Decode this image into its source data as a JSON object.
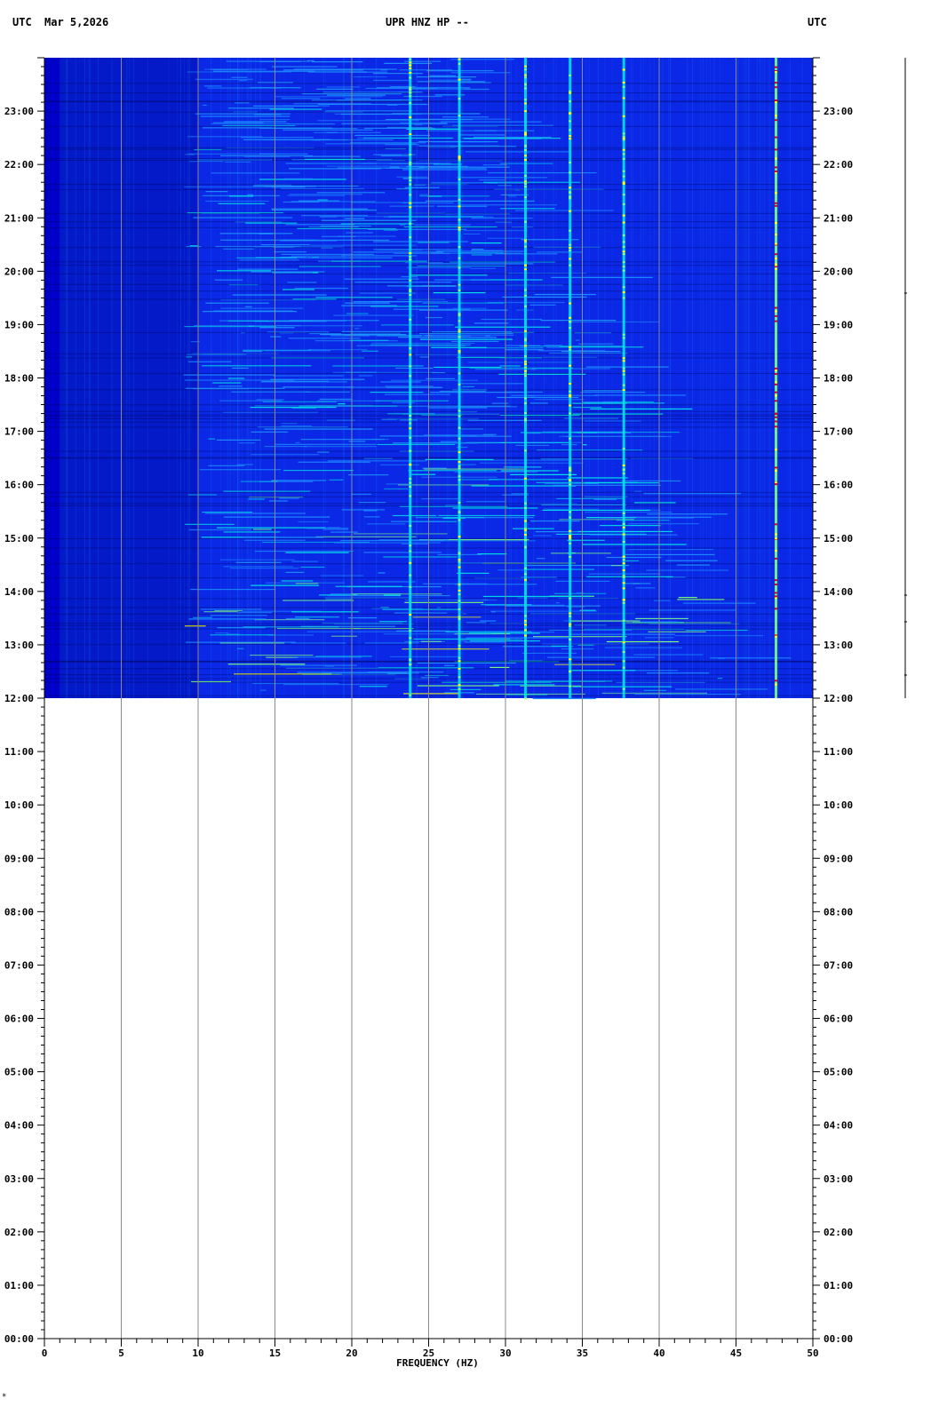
{
  "header": {
    "left_label": "UTC",
    "date": "Mar 5,2026",
    "title": "UPR HNZ HP --",
    "right_label": "UTC"
  },
  "footer": {
    "mark": "*"
  },
  "chart_data": {
    "type": "heatmap",
    "title": "UPR HNZ HP --",
    "xlabel": "FREQUENCY (HZ)",
    "ylabel": "UTC",
    "xlim": [
      0,
      50
    ],
    "x_ticks": [
      "0",
      "5",
      "10",
      "15",
      "20",
      "25",
      "30",
      "35",
      "40",
      "45",
      "50"
    ],
    "y_ticks": [
      "00:00",
      "01:00",
      "02:00",
      "03:00",
      "04:00",
      "05:00",
      "06:00",
      "07:00",
      "08:00",
      "09:00",
      "10:00",
      "11:00",
      "12:00",
      "13:00",
      "14:00",
      "15:00",
      "16:00",
      "17:00",
      "18:00",
      "19:00",
      "20:00",
      "21:00",
      "22:00",
      "23:00"
    ],
    "y_range_hours": [
      0,
      24
    ],
    "data_start_hour": 12,
    "data_end_hour": 24,
    "grid": true,
    "colormap": [
      "#00008c",
      "#0000c8",
      "#0a3cf0",
      "#1e90ff",
      "#00e5e5",
      "#7fff7f",
      "#ffff00",
      "#ff6000",
      "#e00000"
    ],
    "persistent_lines_hz": [
      23.8,
      27.0,
      31.3,
      34.2,
      37.7,
      47.6
    ],
    "strongest_line_hz": 47.6,
    "background_color": "#0a28e6",
    "noise_color": "#1e90ff"
  }
}
